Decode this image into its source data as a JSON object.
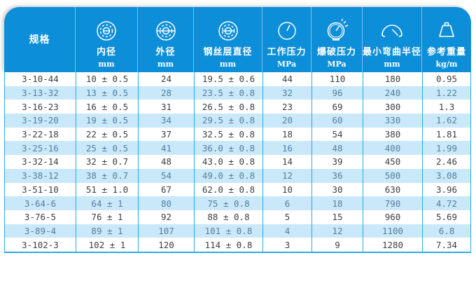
{
  "colors": {
    "header_bg": "#0d8ed8",
    "header_text": "#ffffff",
    "row_bg": "#ffffff",
    "row_alt_bg": "#c9e8fa",
    "grid_line": "#29aae1",
    "row_text": "#3f3f3f",
    "row_alt_text": "#567e9c"
  },
  "chart_data": {
    "type": "table",
    "columns": [
      {
        "label": "规格",
        "unit": "",
        "icon": ""
      },
      {
        "label": "内径",
        "unit": "mm",
        "icon": "inner-diameter-icon"
      },
      {
        "label": "外径",
        "unit": "mm",
        "icon": "outer-diameter-icon"
      },
      {
        "label": "钢丝层直径",
        "unit": "mm",
        "icon": "wire-layer-diameter-icon"
      },
      {
        "label": "工作压力",
        "unit": "MPa",
        "icon": "pressure-gauge-icon"
      },
      {
        "label": "爆破压力",
        "unit": "MPa",
        "icon": "burst-pressure-gauge-icon"
      },
      {
        "label": "最小弯曲半径",
        "unit": "mm",
        "icon": "bend-radius-icon"
      },
      {
        "label": "参考重量",
        "unit": "kg/m",
        "icon": "weight-icon"
      }
    ],
    "rows": [
      [
        "3-10-44",
        "10 ± 0.5",
        "24",
        "19.5 ± 0.6",
        "44",
        "110",
        "180",
        "0.95"
      ],
      [
        "3-13-32",
        "13 ± 0.5",
        "28",
        "23.5 ± 0.8",
        "32",
        "96",
        "240",
        "1.22"
      ],
      [
        "3-16-23",
        "16 ± 0.5",
        "31",
        "26.5 ± 0.8",
        "23",
        "69",
        "300",
        "1.3"
      ],
      [
        "3-19-20",
        "19 ± 0.5",
        "34",
        "29.5 ± 0.8",
        "20",
        "60",
        "330",
        "1.62"
      ],
      [
        "3-22-18",
        "22 ± 0.5",
        "37",
        "32.5 ± 0.8",
        "18",
        "54",
        "380",
        "1.81"
      ],
      [
        "3-25-16",
        "25 ± 0.5",
        "41",
        "36.0 ± 0.8",
        "16",
        "48",
        "400",
        "1.99"
      ],
      [
        "3-32-14",
        "32 ± 0.7",
        "48",
        "43.0 ± 0.8",
        "14",
        "39",
        "450",
        "2.46"
      ],
      [
        "3-38-12",
        "38 ± 0.7",
        "54",
        "49.0 ± 0.8",
        "12",
        "36",
        "500",
        "3.08"
      ],
      [
        "3-51-10",
        "51 ± 1.0",
        "67",
        "62.0 ± 0.8",
        "10",
        "30",
        "630",
        "3.96"
      ],
      [
        "3-64-6",
        "64 ± 1",
        "80",
        "75 ± 0.8",
        "6",
        "18",
        "790",
        "4.72"
      ],
      [
        "3-76-5",
        "76 ± 1",
        "92",
        "88 ± 0.8",
        "5",
        "15",
        "960",
        "5.69"
      ],
      [
        "3-89-4",
        "89 ± 1",
        "107",
        "101 ± 0.8",
        "4",
        "12",
        "1100",
        "6.8"
      ],
      [
        "3-102-3",
        "102 ± 1",
        "120",
        "114 ± 0.8",
        "3",
        "9",
        "1280",
        "7.34"
      ]
    ]
  }
}
